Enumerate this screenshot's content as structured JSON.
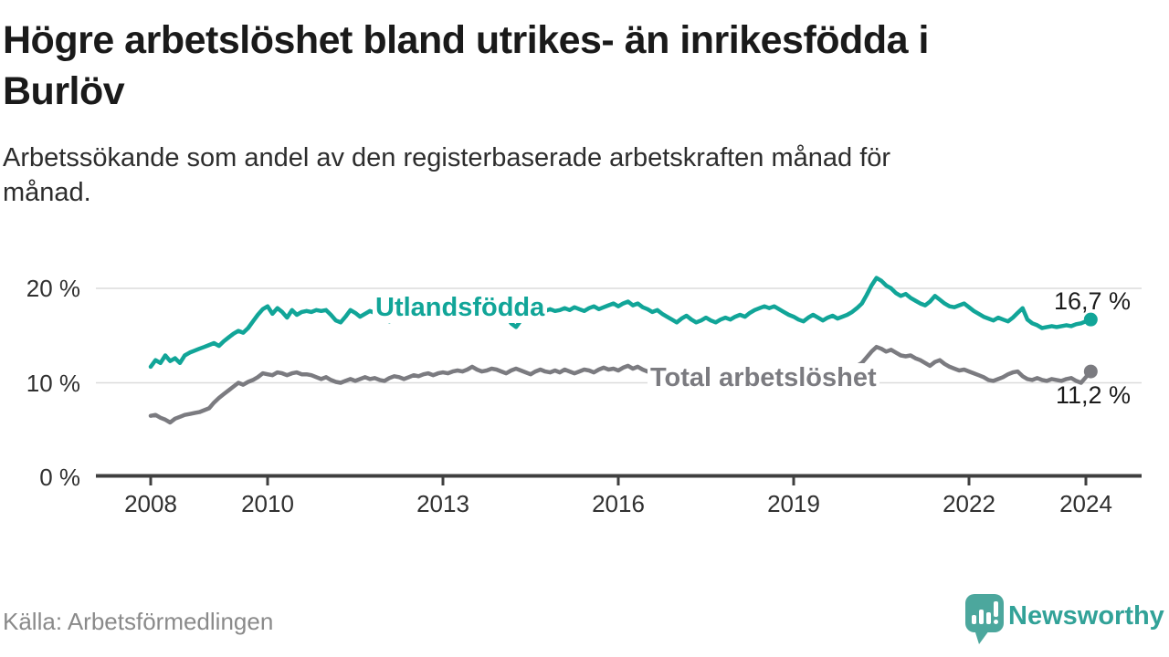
{
  "header": {
    "title": "Högre arbetslöshet bland utrikes- än inrikesfödda i\nBurlöv",
    "subtitle": "Arbetssökande som andel av den registerbaserade arbetskraften månad för\nmånad."
  },
  "chart_data": {
    "type": "line",
    "unit": "%",
    "grid": "horizontal",
    "x_start_year": 2008,
    "points_per_year": 12,
    "x_ticks": [
      2008,
      2010,
      2013,
      2016,
      2019,
      2022,
      2024
    ],
    "y_ticks": [
      {
        "value": 0,
        "label": "0 %"
      },
      {
        "value": 10,
        "label": "10 %"
      },
      {
        "value": 20,
        "label": "20 %"
      }
    ],
    "ylim": [
      0,
      22
    ],
    "series": [
      {
        "name": "Utlandsfödda",
        "color": "#11A598",
        "end_label": "16,7 %",
        "end_value": 16.7,
        "values": [
          11.7,
          12.4,
          12.1,
          12.9,
          12.3,
          12.6,
          12.1,
          12.9,
          13.2,
          13.4,
          13.6,
          13.8,
          14.0,
          14.2,
          13.9,
          14.4,
          14.8,
          15.2,
          15.5,
          15.3,
          15.8,
          16.5,
          17.2,
          17.8,
          18.1,
          17.3,
          17.9,
          17.5,
          16.9,
          17.7,
          17.2,
          17.5,
          17.6,
          17.5,
          17.7,
          17.6,
          17.7,
          17.2,
          16.6,
          16.4,
          17.0,
          17.7,
          17.4,
          17.0,
          17.3,
          17.6,
          17.4,
          17.6,
          16.8,
          16.5,
          17.0,
          17.3,
          16.9,
          17.1,
          17.3,
          17.2,
          17.0,
          17.2,
          17.4,
          17.3,
          17.2,
          17.0,
          16.8,
          17.0,
          17.2,
          17.4,
          17.3,
          17.1,
          17.3,
          17.4,
          17.2,
          17.4,
          17.5,
          17.2,
          16.3,
          15.9,
          16.6,
          17.3,
          17.5,
          17.7,
          17.5,
          17.6,
          17.8,
          17.6,
          17.7,
          17.9,
          17.7,
          18.0,
          17.8,
          17.6,
          17.9,
          18.1,
          17.8,
          18.0,
          18.2,
          18.4,
          18.1,
          18.4,
          18.6,
          18.2,
          18.4,
          18.0,
          17.8,
          17.5,
          17.7,
          17.3,
          17.0,
          16.7,
          16.4,
          16.8,
          17.1,
          16.7,
          16.4,
          16.6,
          16.9,
          16.6,
          16.4,
          16.7,
          16.9,
          16.7,
          17.0,
          17.2,
          17.0,
          17.4,
          17.7,
          17.9,
          18.1,
          17.9,
          18.1,
          17.8,
          17.5,
          17.2,
          17.0,
          16.7,
          16.5,
          16.9,
          17.2,
          16.9,
          16.6,
          16.9,
          17.1,
          16.8,
          17.0,
          17.2,
          17.5,
          17.9,
          18.4,
          19.3,
          20.3,
          21.1,
          20.8,
          20.3,
          20.0,
          19.5,
          19.2,
          19.4,
          19.0,
          18.7,
          18.4,
          18.2,
          18.6,
          19.2,
          18.8,
          18.4,
          18.1,
          18.0,
          18.2,
          18.4,
          18.0,
          17.6,
          17.3,
          17.0,
          16.8,
          16.6,
          16.9,
          16.7,
          16.5,
          16.9,
          17.4,
          17.9,
          16.7,
          16.3,
          16.1,
          15.8,
          15.9,
          16.0,
          15.9,
          16.0,
          16.1,
          16.0,
          16.2,
          16.3,
          16.5,
          16.7
        ]
      },
      {
        "name": "Total arbetslöshet",
        "color": "#7B7B80",
        "end_label": "11,2 %",
        "end_value": 11.2,
        "values": [
          6.5,
          6.6,
          6.3,
          6.1,
          5.8,
          6.2,
          6.4,
          6.6,
          6.7,
          6.8,
          6.9,
          7.1,
          7.3,
          7.9,
          8.4,
          8.8,
          9.2,
          9.6,
          10.0,
          9.8,
          10.1,
          10.3,
          10.6,
          11.0,
          10.9,
          10.8,
          11.1,
          11.0,
          10.8,
          11.0,
          11.1,
          10.9,
          10.9,
          10.8,
          10.6,
          10.4,
          10.6,
          10.3,
          10.1,
          10.0,
          10.2,
          10.4,
          10.2,
          10.4,
          10.6,
          10.4,
          10.5,
          10.3,
          10.2,
          10.5,
          10.7,
          10.6,
          10.4,
          10.6,
          10.8,
          10.7,
          10.9,
          11.0,
          10.8,
          11.0,
          11.1,
          11.0,
          11.2,
          11.3,
          11.2,
          11.4,
          11.7,
          11.4,
          11.2,
          11.3,
          11.5,
          11.4,
          11.2,
          11.0,
          11.3,
          11.5,
          11.3,
          11.1,
          10.9,
          11.2,
          11.4,
          11.2,
          11.1,
          11.3,
          11.1,
          11.4,
          11.2,
          11.0,
          11.2,
          11.4,
          11.3,
          11.1,
          11.4,
          11.6,
          11.4,
          11.5,
          11.3,
          11.6,
          11.8,
          11.5,
          11.7,
          11.4,
          11.2,
          11.0,
          10.8,
          11.0,
          11.2,
          11.1,
          10.9,
          11.1,
          10.8,
          10.6,
          10.8,
          11.0,
          10.9,
          10.7,
          10.9,
          11.1,
          11.0,
          11.2,
          11.0,
          10.8,
          10.6,
          10.8,
          11.0,
          10.9,
          10.7,
          10.9,
          10.8,
          10.6,
          10.8,
          10.7,
          10.5,
          10.7,
          10.9,
          10.8,
          11.0,
          10.9,
          10.7,
          10.9,
          11.1,
          11.0,
          11.2,
          11.4,
          11.6,
          11.8,
          12.1,
          12.7,
          13.3,
          13.8,
          13.6,
          13.3,
          13.5,
          13.2,
          12.9,
          12.8,
          12.9,
          12.6,
          12.4,
          12.1,
          11.8,
          12.2,
          12.4,
          12.0,
          11.7,
          11.5,
          11.3,
          11.4,
          11.2,
          11.0,
          10.8,
          10.6,
          10.3,
          10.2,
          10.4,
          10.6,
          10.9,
          11.1,
          11.2,
          10.7,
          10.4,
          10.3,
          10.5,
          10.3,
          10.2,
          10.4,
          10.3,
          10.2,
          10.4,
          10.5,
          10.2,
          10.0,
          10.6,
          11.2
        ]
      }
    ],
    "title": "Högre arbetslöshet bland utrikes- än inrikesfödda i Burlöv",
    "xlabel": "",
    "ylabel": ""
  },
  "colors": {
    "accent_teal": "#11A598",
    "line_gray": "#7B7B80",
    "gridline": "#DBDBDB",
    "axis": "#3F3F3F",
    "logo_teal": "#4CA79D"
  },
  "footer": {
    "source": "Källa: Arbetsförmedlingen",
    "brand": "Newsworthy"
  }
}
